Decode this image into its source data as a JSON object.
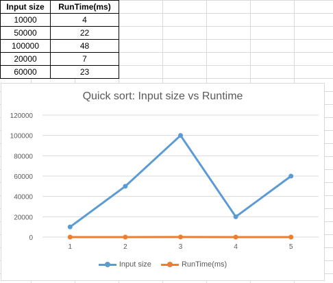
{
  "table": {
    "headers": [
      "Input size",
      "RunTime(ms)"
    ],
    "rows": [
      [
        "10000",
        "4"
      ],
      [
        "50000",
        "22"
      ],
      [
        "100000",
        "48"
      ],
      [
        "20000",
        "7"
      ],
      [
        "60000",
        "23"
      ]
    ]
  },
  "colors": {
    "series1": "#5b9bd5",
    "series2": "#ed7d31",
    "gridline": "#d9d9d9",
    "axis_text": "#595959"
  },
  "chart_data": {
    "type": "line",
    "title": "Quick sort: Input size vs Runtime",
    "x": [
      1,
      2,
      3,
      4,
      5
    ],
    "series": [
      {
        "name": "Input size",
        "values": [
          10000,
          50000,
          100000,
          20000,
          60000
        ]
      },
      {
        "name": "RunTime(ms)",
        "values": [
          4,
          22,
          48,
          7,
          23
        ]
      }
    ],
    "xlabel": "",
    "ylabel": "",
    "ylim": [
      0,
      120000
    ],
    "yticks": [
      "0",
      "20000",
      "40000",
      "60000",
      "80000",
      "100000",
      "120000"
    ],
    "xticks": [
      "1",
      "2",
      "3",
      "4",
      "5"
    ],
    "grid": true,
    "legend": "bottom"
  }
}
